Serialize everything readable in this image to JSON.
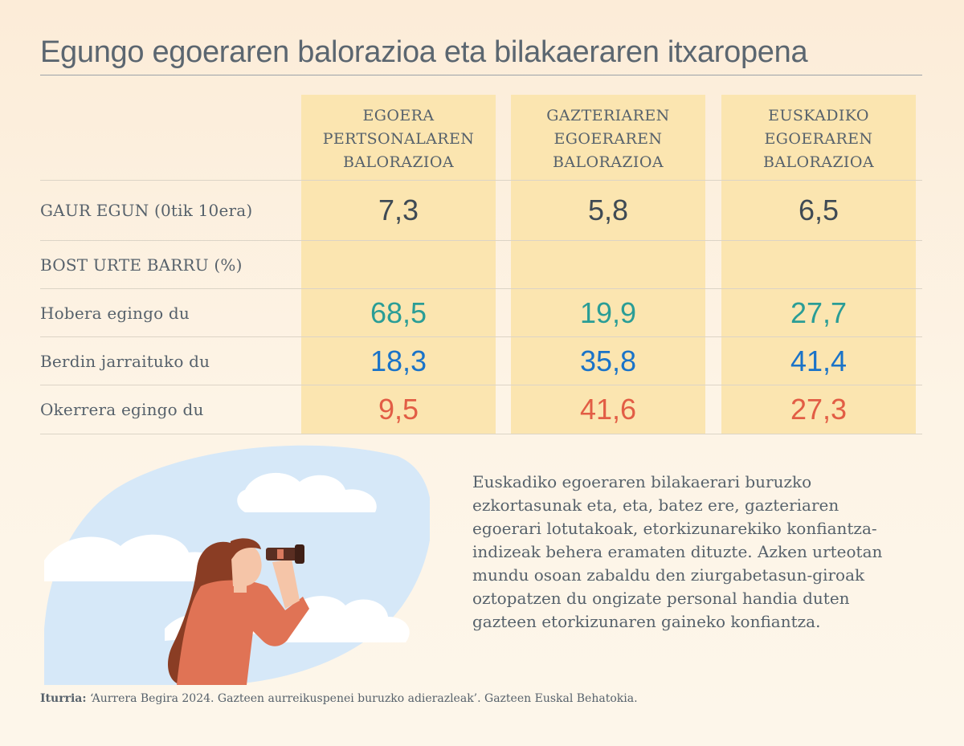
{
  "title": "Egungo egoeraren balorazioa eta bilakaeraren itxaropena",
  "columns": [
    [
      "EGOERA",
      "PERTSONALAREN",
      "BALORAZIOA"
    ],
    [
      "GAZTERIAREN",
      "EGOERAREN",
      "BALORAZIOA"
    ],
    [
      "EUSKADIKO",
      "EGOERAREN",
      "BALORAZIOA"
    ]
  ],
  "rows": [
    {
      "label": "GAUR EGUN (0tik 10era)",
      "values": [
        "7,3",
        "5,8",
        "6,5"
      ],
      "color": "#3f4a54"
    },
    {
      "label": "BOST URTE BARRU (%)",
      "values": [
        "",
        "",
        ""
      ]
    },
    {
      "label": "Hobera egingo du",
      "values": [
        "68,5",
        "19,9",
        "27,7"
      ],
      "color": "#2a9d96"
    },
    {
      "label": "Berdin jarraituko du",
      "values": [
        "18,3",
        "35,8",
        "41,4"
      ],
      "color": "#1a73c8"
    },
    {
      "label": "Okerrera egingo du",
      "values": [
        "9,5",
        "41,6",
        "27,3"
      ],
      "color": "#e25d45"
    }
  ],
  "chart_data": {
    "type": "table",
    "title": "Egungo egoeraren balorazioa eta bilakaeraren itxaropena",
    "columns": [
      "EGOERA PERTSONALAREN BALORAZIOA",
      "GAZTERIAREN EGOERAREN BALORAZIOA",
      "EUSKADIKO EGOERAREN BALORAZIOA"
    ],
    "rows": [
      {
        "label": "GAUR EGUN (0tik 10era)",
        "values": [
          7.3,
          5.8,
          6.5
        ]
      },
      {
        "label": "Hobera egingo du",
        "group": "BOST URTE BARRU (%)",
        "values": [
          68.5,
          19.9,
          27.7
        ]
      },
      {
        "label": "Berdin jarraituko du",
        "group": "BOST URTE BARRU (%)",
        "values": [
          18.3,
          35.8,
          41.4
        ]
      },
      {
        "label": "Okerrera egingo du",
        "group": "BOST URTE BARRU (%)",
        "values": [
          9.5,
          41.6,
          27.3
        ]
      }
    ]
  },
  "paragraph": "Euskadiko egoeraren bilakaerari buruzko ezkortasunak eta, eta, batez ere, gazteriaren egoerari lotutakoak, etorkizunarekiko konfiantza-indizeak behera eramaten dituzte. Azken urteotan mundu osoan zabaldu den ziurgabetasun-giroak oztopatzen du ongizate personal handia duten gazteen etorkizunaren gaineko konfiantza.",
  "source_label": "Iturria:",
  "source_text": " ‘Aurrera Begira 2024. Gazteen aurreikuspenei buruzko adierazleak’. Gazteen Euskal Behatokia.",
  "illustration": "woman-with-binoculars-in-sky"
}
